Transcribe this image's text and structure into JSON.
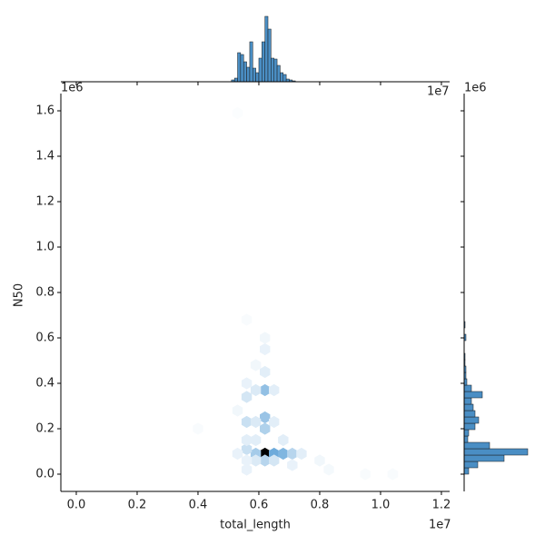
{
  "chart_data": [
    {
      "type": "hexbin",
      "x_label": "total_length",
      "y_label": "N50",
      "x_offset_label": "1e7",
      "y_offset_label": "1e6",
      "xlim": [
        -0.0507,
        1.227
      ],
      "ylim": [
        -0.076,
        1.676
      ],
      "xticks": [
        {
          "value": 0,
          "label": "0.0"
        },
        0.2,
        0.4,
        0.6,
        0.8,
        {
          "value": 1,
          "label": "1.0"
        },
        1.2
      ],
      "yticks": [
        {
          "value": 0,
          "label": "0.0"
        },
        0.2,
        0.4,
        0.6,
        0.8,
        {
          "value": 1,
          "label": "1.0"
        },
        1.2,
        1.4,
        1.6
      ],
      "colors": [
        "#ffffff",
        "#4a96d2",
        "#000000"
      ],
      "x": [
        0.62,
        0.65,
        0.68,
        0.59,
        0.71,
        0.56,
        0.74,
        0.62,
        0.59,
        0.65,
        0.56,
        0.62,
        0.62,
        0.62,
        0.59,
        0.56,
        0.56,
        0.59,
        0.56,
        0.59,
        0.56,
        0.62,
        0.62,
        0.62,
        0.59,
        0.65,
        0.65,
        0.68,
        0.53,
        0.56,
        0.8,
        0.83,
        0.95,
        1.04,
        0.4,
        0.56,
        0.53,
        0.71,
        0.53
      ],
      "y": [
        0.09,
        0.09,
        0.09,
        0.09,
        0.09,
        0.11,
        0.09,
        0.06,
        0.06,
        0.06,
        0.06,
        0.37,
        0.25,
        0.2,
        0.37,
        0.34,
        0.23,
        0.23,
        0.4,
        0.15,
        0.15,
        0.45,
        0.55,
        0.6,
        0.48,
        0.37,
        0.23,
        0.15,
        0.09,
        0.02,
        0.06,
        0.02,
        0,
        0,
        0.2,
        0.68,
        1.59,
        0.04,
        0.28
      ],
      "counts": [
        100,
        40,
        35,
        25,
        20,
        15,
        8,
        20,
        10,
        12,
        6,
        30,
        28,
        22,
        10,
        12,
        15,
        10,
        6,
        8,
        8,
        8,
        6,
        4,
        4,
        8,
        8,
        8,
        6,
        6,
        4,
        3,
        2,
        2,
        2,
        2,
        1,
        6,
        4
      ]
    },
    {
      "type": "histogram",
      "orientation": "vertical",
      "offset_label": "1e7",
      "color": "#4a8ec4",
      "ylim": [
        0,
        75
      ],
      "bins": [
        0.51,
        0.52,
        0.53,
        0.54,
        0.55,
        0.56,
        0.57,
        0.58,
        0.59,
        0.6,
        0.61,
        0.62,
        0.63,
        0.64,
        0.65,
        0.66,
        0.67,
        0.68,
        0.69,
        0.7,
        0.71,
        0.72
      ],
      "values": [
        2,
        4,
        32,
        30,
        22,
        16,
        44,
        15,
        10,
        26,
        44,
        72,
        58,
        26,
        25,
        18,
        10,
        8,
        3,
        2,
        1
      ]
    },
    {
      "type": "histogram",
      "orientation": "horizontal",
      "offset_label": "1e6",
      "color": "#4a8ec4",
      "xlim": [
        0,
        75
      ],
      "bins": [
        0,
        0.028,
        0.056,
        0.084,
        0.112,
        0.14,
        0.168,
        0.196,
        0.224,
        0.252,
        0.28,
        0.308,
        0.336,
        0.364,
        0.392,
        0.42,
        0.448,
        0.476,
        0.504,
        0.532,
        0.56,
        0.588,
        0.616,
        0.644,
        0.672
      ],
      "values": [
        5,
        15,
        44,
        70,
        28,
        4,
        5,
        12,
        16,
        12,
        10,
        8,
        20,
        8,
        3,
        2,
        2,
        1,
        1,
        0,
        0,
        2,
        0,
        1
      ]
    }
  ]
}
